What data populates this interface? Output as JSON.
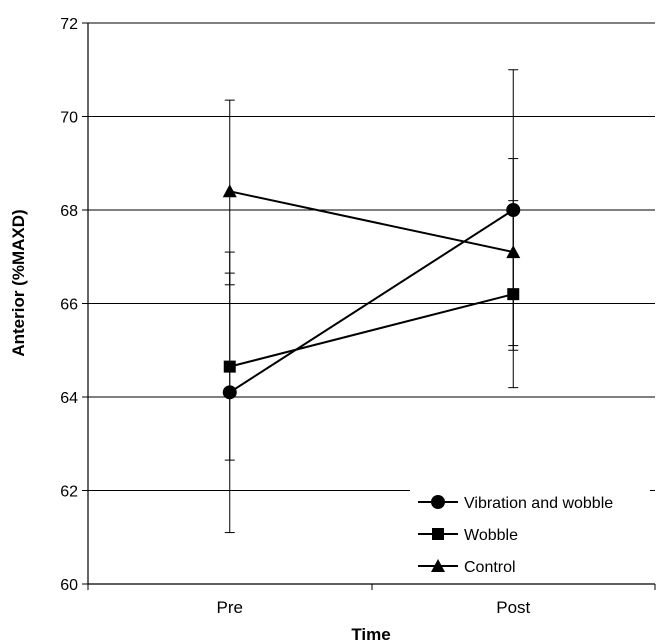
{
  "chart_data": {
    "type": "line",
    "xlabel": "Time",
    "ylabel": "Anterior (%MAXD)",
    "categories": [
      "Pre",
      "Post"
    ],
    "ylim": [
      60,
      72
    ],
    "yticks": [
      60,
      62,
      64,
      66,
      68,
      70,
      72
    ],
    "grid": "horizontal",
    "legend_position": "bottom-right",
    "series": [
      {
        "name": "Vibration and wobble",
        "marker": "circle",
        "values": [
          64.1,
          68.0
        ],
        "error_low": [
          61.1,
          65.1
        ],
        "error_high": [
          67.1,
          71.0
        ]
      },
      {
        "name": "Wobble",
        "marker": "square",
        "values": [
          64.65,
          66.2
        ],
        "error_low": [
          62.65,
          64.2
        ],
        "error_high": [
          66.65,
          68.2
        ]
      },
      {
        "name": "Control",
        "marker": "triangle",
        "values": [
          68.4,
          67.1
        ],
        "error_low": [
          66.4,
          65.0
        ],
        "error_high": [
          70.35,
          69.1
        ]
      }
    ]
  }
}
